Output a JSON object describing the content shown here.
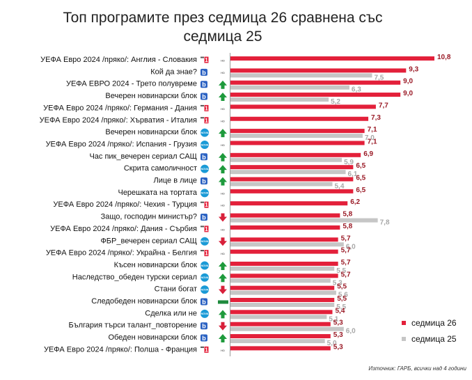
{
  "chart_data": {
    "type": "bar",
    "orientation": "horizontal",
    "title_lines": [
      "Топ програмите през седмица 26 сравнена със",
      "седмица 25"
    ],
    "series": [
      {
        "name": "седмица 26",
        "color": "#e3203a"
      },
      {
        "name": "седмица 25",
        "color": "#c6c6c6"
      }
    ],
    "rows": [
      {
        "label": "УЕФА Евро 2024 /пряко/: Англия - Словакия",
        "w26": 10.8,
        "w25": null,
        "w26_label": "10,8",
        "w25_label": "",
        "channel": "bnt1",
        "trend": "none"
      },
      {
        "label": "Кой да знае?",
        "w26": 9.3,
        "w25": 7.5,
        "w26_label": "9,3",
        "w25_label": "7,5",
        "channel": "btv",
        "trend": "none"
      },
      {
        "label": "УЕФА ЕВРО 2024 - Трето полувреме",
        "w26": 9.0,
        "w25": 6.3,
        "w26_label": "9,0",
        "w25_label": "6,3",
        "channel": "btv",
        "trend": "up"
      },
      {
        "label": "Вечерен новинарски блок",
        "w26": 9.0,
        "w25": 5.2,
        "w26_label": "9,0",
        "w25_label": "5,2",
        "channel": "btv",
        "trend": "up"
      },
      {
        "label": "УЕФА Евро 2024 /пряко/: Германия - Дания",
        "w26": 7.7,
        "w25": null,
        "w26_label": "7,7",
        "w25_label": "",
        "channel": "bnt1",
        "trend": "none"
      },
      {
        "label": "УЕФА Евро 2024 /пряко/: Хърватия - Италия",
        "w26": 7.3,
        "w25": null,
        "w26_label": "7,3",
        "w25_label": "",
        "channel": "bnt1",
        "trend": "none"
      },
      {
        "label": "Вечерен новинарски блок",
        "w26": 7.1,
        "w25": 7.0,
        "w26_label": "7,1",
        "w25_label": "7,0",
        "channel": "nova",
        "trend": "up"
      },
      {
        "label": "УЕФА Евро 2024 /пряко/: Испания - Грузия",
        "w26": 7.1,
        "w25": null,
        "w26_label": "7,1",
        "w25_label": "",
        "channel": "nova",
        "trend": "none"
      },
      {
        "label": "Час пик_вечерен сериал САЩ",
        "w26": 6.9,
        "w25": 5.9,
        "w26_label": "6,9",
        "w25_label": "5,9",
        "channel": "btv",
        "trend": "up"
      },
      {
        "label": "Скрита самоличност",
        "w26": 6.5,
        "w25": 6.1,
        "w26_label": "6,5",
        "w25_label": "6,1",
        "channel": "nova",
        "trend": "up"
      },
      {
        "label": "Лице в лице",
        "w26": 6.5,
        "w25": 5.4,
        "w26_label": "6,5",
        "w25_label": "5,4",
        "channel": "btv",
        "trend": "up"
      },
      {
        "label": "Черешката на тортата",
        "w26": 6.5,
        "w25": null,
        "w26_label": "6,5",
        "w25_label": "",
        "channel": "nova",
        "trend": "none"
      },
      {
        "label": "УЕФА Евро 2024 /пряко/: Чехия - Турция",
        "w26": 6.2,
        "w25": null,
        "w26_label": "6,2",
        "w25_label": "",
        "channel": "bnt1",
        "trend": "none"
      },
      {
        "label": "Защо, господин министър?",
        "w26": 5.8,
        "w25": 7.8,
        "w26_label": "5,8",
        "w25_label": "7,8",
        "channel": "btv",
        "trend": "down"
      },
      {
        "label": "УЕФА Евро 2024 /пряко/: Дания - Сърбия",
        "w26": 5.8,
        "w25": null,
        "w26_label": "5,8",
        "w25_label": "",
        "channel": "bnt1",
        "trend": "none"
      },
      {
        "label": "ФБР_вечерен сериал САЩ",
        "w26": 5.7,
        "w25": 6.0,
        "w26_label": "5,7",
        "w25_label": "6,0",
        "channel": "nova",
        "trend": "down"
      },
      {
        "label": "УЕФА Евро 2024 /пряко/: Украйна - Белгия",
        "w26": 5.7,
        "w25": null,
        "w26_label": "5,7",
        "w25_label": "",
        "channel": "bnt1",
        "trend": "none"
      },
      {
        "label": "Късен новинарски блок",
        "w26": 5.7,
        "w25": 5.5,
        "w26_label": "5,7",
        "w25_label": "5,5",
        "channel": "nova",
        "trend": "up"
      },
      {
        "label": "Наследство_обеден турски сериал",
        "w26": 5.7,
        "w25": 5.3,
        "w26_label": "5,7",
        "w25_label": "5,3",
        "channel": "nova",
        "trend": "up"
      },
      {
        "label": "Стани богат",
        "w26": 5.5,
        "w25": 5.6,
        "w26_label": "5,5",
        "w25_label": "5,6",
        "channel": "nova",
        "trend": "down"
      },
      {
        "label": "Следобеден новинарски блок",
        "w26": 5.5,
        "w25": 5.5,
        "w26_label": "5,5",
        "w25_label": "5,5",
        "channel": "btv",
        "trend": "same"
      },
      {
        "label": "Сделка или не",
        "w26": 5.4,
        "w25": 5.1,
        "w26_label": "5,4",
        "w25_label": "5,1",
        "channel": "nova",
        "trend": "up"
      },
      {
        "label": "България търси талант_повторение",
        "w26": 5.3,
        "w25": 6.0,
        "w26_label": "5,3",
        "w25_label": "6,0",
        "channel": "btv",
        "trend": "down"
      },
      {
        "label": "Обеден новинарски блок",
        "w26": 5.3,
        "w25": 5.0,
        "w26_label": "5,3",
        "w25_label": "5,0",
        "channel": "btv",
        "trend": "up"
      },
      {
        "label": "УЕФА Евро 2024 /пряко/: Полша - Франция",
        "w26": 5.3,
        "w25": null,
        "w26_label": "5,3",
        "w25_label": "",
        "channel": "bnt1",
        "trend": "none"
      }
    ],
    "xlim": [
      0,
      10.8
    ],
    "legend_position": "bottom-right",
    "source_note": "Източник: ГАРБ, всички над 4 години"
  },
  "channels": {
    "bnt1": {
      "text": "1",
      "color": "#e3203a"
    },
    "btv": {
      "text": "b",
      "color": "#2b62c2"
    },
    "nova": {
      "text": "NOVA",
      "color": "#1a9ad6"
    },
    "hd_text": "HD"
  },
  "trend_colors": {
    "up": "#1e9a3c",
    "down": "#d8203a",
    "same": "#1e8a3c"
  }
}
